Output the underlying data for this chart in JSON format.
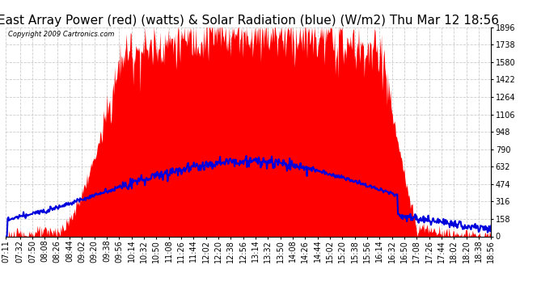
{
  "title": "East Array Power (red) (watts) & Solar Radiation (blue) (W/m2) Thu Mar 12 18:56",
  "copyright": "Copyright 2009 Cartronics.com",
  "yticks": [
    0.0,
    158.0,
    315.9,
    473.9,
    631.8,
    789.8,
    947.8,
    1105.7,
    1263.7,
    1421.7,
    1579.6,
    1737.6,
    1895.5
  ],
  "ylim": [
    0,
    1895.5
  ],
  "background_color": "#ffffff",
  "plot_bg_color": "#ffffff",
  "grid_color": "#cccccc",
  "bar_color": "#ff0000",
  "line_color": "#0000dd",
  "title_fontsize": 11,
  "tick_fontsize": 7,
  "x_tick_labels": [
    "07:11",
    "07:32",
    "07:50",
    "08:08",
    "08:26",
    "08:44",
    "09:02",
    "09:20",
    "09:38",
    "09:56",
    "10:14",
    "10:32",
    "10:50",
    "11:08",
    "11:26",
    "11:44",
    "12:02",
    "12:20",
    "12:38",
    "12:56",
    "13:14",
    "13:32",
    "13:50",
    "14:08",
    "14:26",
    "14:44",
    "15:02",
    "15:20",
    "15:38",
    "15:56",
    "16:14",
    "16:32",
    "16:50",
    "17:08",
    "17:26",
    "17:44",
    "18:02",
    "18:20",
    "18:38",
    "18:56"
  ]
}
